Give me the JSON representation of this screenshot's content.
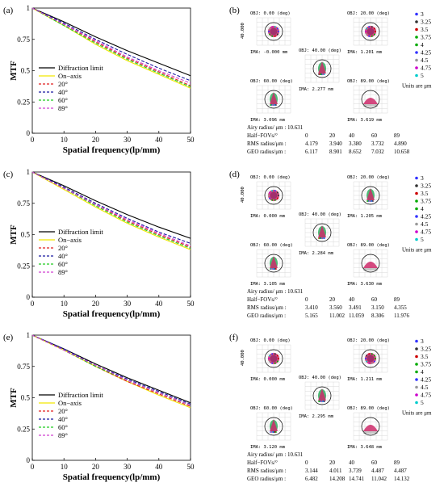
{
  "chart_data": [
    {
      "type": "line",
      "panel_label": "(a)",
      "xlabel": "Spatial frequency(lp/mm)",
      "ylabel": "MTF",
      "xlim": [
        0,
        50
      ],
      "ylim": [
        0,
        1
      ],
      "xticks": [
        "0",
        "10",
        "20",
        "30",
        "40",
        "50"
      ],
      "yticks": [
        "0",
        "0.25",
        "0.5",
        "0.75",
        "1"
      ],
      "legend_position": "center-left",
      "x": [
        0,
        10,
        20,
        30,
        40,
        50
      ],
      "series": [
        {
          "name": "Diffraction limit",
          "color": "#000000",
          "dash": "solid",
          "values": [
            1,
            0.89,
            0.77,
            0.66,
            0.56,
            0.46
          ]
        },
        {
          "name": "On−axis",
          "color": "#f2e600",
          "dash": "solid",
          "values": [
            1,
            0.86,
            0.71,
            0.58,
            0.47,
            0.36
          ]
        },
        {
          "name": "20°",
          "color": "#e02020",
          "dash": "dashed",
          "values": [
            1,
            0.87,
            0.73,
            0.6,
            0.49,
            0.38
          ]
        },
        {
          "name": "40°",
          "color": "#1a1aa0",
          "dash": "dashed",
          "values": [
            1,
            0.88,
            0.75,
            0.63,
            0.52,
            0.42
          ]
        },
        {
          "name": "60°",
          "color": "#22cc22",
          "dash": "dashed",
          "values": [
            1,
            0.86,
            0.72,
            0.59,
            0.48,
            0.37
          ]
        },
        {
          "name": "89°",
          "color": "#d040d0",
          "dash": "dashed",
          "values": [
            1,
            0.87,
            0.74,
            0.61,
            0.5,
            0.4
          ]
        }
      ]
    },
    {
      "type": "line",
      "panel_label": "(c)",
      "xlabel": "Spatial frequency(lp/mm)",
      "ylabel": "MTF",
      "xlim": [
        0,
        50
      ],
      "ylim": [
        0,
        1
      ],
      "xticks": [
        "0",
        "10",
        "20",
        "30",
        "40",
        "50"
      ],
      "yticks": [
        "0",
        "0.25",
        "0.5",
        "0.75",
        "1"
      ],
      "legend_position": "center-left",
      "x": [
        0,
        10,
        20,
        30,
        40,
        50
      ],
      "series": [
        {
          "name": "Diffraction limit",
          "color": "#000000",
          "dash": "solid",
          "values": [
            1,
            0.89,
            0.77,
            0.66,
            0.56,
            0.47
          ]
        },
        {
          "name": "On−axis",
          "color": "#f2e600",
          "dash": "solid",
          "values": [
            1,
            0.86,
            0.72,
            0.59,
            0.48,
            0.38
          ]
        },
        {
          "name": "20°",
          "color": "#e02020",
          "dash": "dashed",
          "values": [
            1,
            0.87,
            0.74,
            0.61,
            0.5,
            0.4
          ]
        },
        {
          "name": "40°",
          "color": "#1a1aa0",
          "dash": "dashed",
          "values": [
            1,
            0.88,
            0.75,
            0.63,
            0.52,
            0.43
          ]
        },
        {
          "name": "60°",
          "color": "#22cc22",
          "dash": "dashed",
          "values": [
            1,
            0.87,
            0.73,
            0.6,
            0.49,
            0.39
          ]
        },
        {
          "name": "89°",
          "color": "#d040d0",
          "dash": "dashed",
          "values": [
            1,
            0.87,
            0.74,
            0.62,
            0.51,
            0.41
          ]
        }
      ]
    },
    {
      "type": "line",
      "panel_label": "(e)",
      "xlabel": "Spatial frequency(lp/mm)",
      "ylabel": "MTF",
      "xlim": [
        0,
        50
      ],
      "ylim": [
        0,
        1
      ],
      "xticks": [
        "0",
        "10",
        "20",
        "30",
        "40",
        "50"
      ],
      "yticks": [
        "0",
        "0.25",
        "0.5",
        "0.75",
        "1"
      ],
      "legend_position": "center-left",
      "x": [
        0,
        10,
        20,
        30,
        40,
        50
      ],
      "series": [
        {
          "name": "Diffraction limit",
          "color": "#000000",
          "dash": "solid",
          "values": [
            1,
            0.89,
            0.77,
            0.66,
            0.56,
            0.46
          ]
        },
        {
          "name": "On−axis",
          "color": "#f2e600",
          "dash": "solid",
          "values": [
            1,
            0.88,
            0.75,
            0.63,
            0.52,
            0.42
          ]
        },
        {
          "name": "20°",
          "color": "#e02020",
          "dash": "dashed",
          "values": [
            1,
            0.88,
            0.75,
            0.63,
            0.53,
            0.43
          ]
        },
        {
          "name": "40°",
          "color": "#1a1aa0",
          "dash": "dashed",
          "values": [
            1,
            0.89,
            0.76,
            0.65,
            0.55,
            0.45
          ]
        },
        {
          "name": "60°",
          "color": "#22cc22",
          "dash": "dashed",
          "values": [
            1,
            0.88,
            0.75,
            0.64,
            0.54,
            0.44
          ]
        },
        {
          "name": "89°",
          "color": "#d040d0",
          "dash": "dashed",
          "values": [
            1,
            0.88,
            0.76,
            0.64,
            0.54,
            0.44
          ]
        }
      ]
    }
  ],
  "spot_panels": [
    {
      "panel_label": "(b)",
      "axis_text": "40.000",
      "legend_values": [
        "3",
        "3.25",
        "3.5",
        "3.75",
        "4",
        "4.25",
        "4.5",
        "4.75",
        "5"
      ],
      "legend_unit": "Units are μm",
      "fields": [
        {
          "obj": "OBJ: 0.00 (deg)",
          "ima": "IMA: -0.000 mm",
          "shape": "round"
        },
        {
          "obj": "OBJ: 40.00 (deg)",
          "ima": "IMA: 2.277 mm",
          "shape": "tall"
        },
        {
          "obj": "OBJ: 20.00 (deg)",
          "ima": "IMA: 1.201 mm",
          "shape": "round"
        },
        {
          "obj": "OBJ: 60.00 (deg)",
          "ima": "IMA: 3.096 mm",
          "shape": "tall"
        },
        {
          "obj": "OBJ: 89.00 (deg)",
          "ima": "IMA: 3.619 mm",
          "shape": "fan"
        }
      ],
      "airy": "Airy radius/ μm : 10.631",
      "table": [
        [
          "Half−FOVs/°",
          "0",
          "20",
          "40",
          "60",
          "89"
        ],
        [
          "RMS radius/μm :",
          "4.179",
          "3.940",
          "3.380",
          "3.732",
          "4.890"
        ],
        [
          "GEO radius/μm :",
          "6.117",
          "8.901",
          "8.652",
          "7.032",
          "10.658"
        ]
      ]
    },
    {
      "panel_label": "(d)",
      "axis_text": "40.000",
      "legend_values": [
        "3",
        "3.25",
        "3.5",
        "3.75",
        "4",
        "4.25",
        "4.5",
        "4.75",
        "5"
      ],
      "legend_unit": "Units are μm",
      "fields": [
        {
          "obj": "OBJ: 0.00 (deg)",
          "ima": "IMA: 0.000 mm",
          "shape": "round"
        },
        {
          "obj": "OBJ: 40.00 (deg)",
          "ima": "IMA: 2.284 mm",
          "shape": "tall"
        },
        {
          "obj": "OBJ: 20.00 (deg)",
          "ima": "IMA: 1.205 mm",
          "shape": "tall"
        },
        {
          "obj": "OBJ: 60.00 (deg)",
          "ima": "IMA: 3.105 mm",
          "shape": "tall"
        },
        {
          "obj": "OBJ: 89.00 (deg)",
          "ima": "IMA: 3.630 mm",
          "shape": "fan"
        }
      ],
      "airy": "Airy radius/ μm : 10.631",
      "table": [
        [
          "Half−FOVs/°",
          "0",
          "20",
          "40",
          "60",
          "89"
        ],
        [
          "RMS radius/μm :",
          "3.410",
          "3.560",
          "3.491",
          "3.150",
          "4.355"
        ],
        [
          "GEO radius/μm :",
          "5.165",
          "11.002",
          "11.059",
          "8.306",
          "11.976"
        ]
      ]
    },
    {
      "panel_label": "(f)",
      "axis_text": "40.000",
      "legend_values": [
        "3",
        "3.25",
        "3.5",
        "3.75",
        "4",
        "4.25",
        "4.5",
        "4.75",
        "5"
      ],
      "legend_unit": "Units are μm",
      "fields": [
        {
          "obj": "OBJ: 0.00 (deg)",
          "ima": "IMA: 0.000 mm",
          "shape": "round"
        },
        {
          "obj": "OBJ: 40.00 (deg)",
          "ima": "IMA: 2.295 mm",
          "shape": "tall"
        },
        {
          "obj": "OBJ: 20.00 (deg)",
          "ima": "IMA: 1.211 mm",
          "shape": "round"
        },
        {
          "obj": "OBJ: 60.00 (deg)",
          "ima": "IMA: 3.120 mm",
          "shape": "tall"
        },
        {
          "obj": "OBJ: 89.00 (deg)",
          "ima": "IMA: 3.648 mm",
          "shape": "fan"
        }
      ],
      "airy": "Airy radius/ μm : 10.631",
      "table": [
        [
          "Half−FOVs/°",
          "0",
          "20",
          "40",
          "60",
          "89"
        ],
        [
          "RMS radius/μm :",
          "3.144",
          "4.011",
          "3.739",
          "4.487",
          "4.487"
        ],
        [
          "GEO radius/μm :",
          "6.482",
          "14.208",
          "14.741",
          "11.042",
          "14.132"
        ]
      ]
    }
  ],
  "legend_marker_colors": [
    "#3333ff",
    "#333333",
    "#cc0000",
    "#00aa00",
    "#00aa00",
    "#3333ff",
    "#999999",
    "#cc00cc",
    "#00cccc"
  ]
}
